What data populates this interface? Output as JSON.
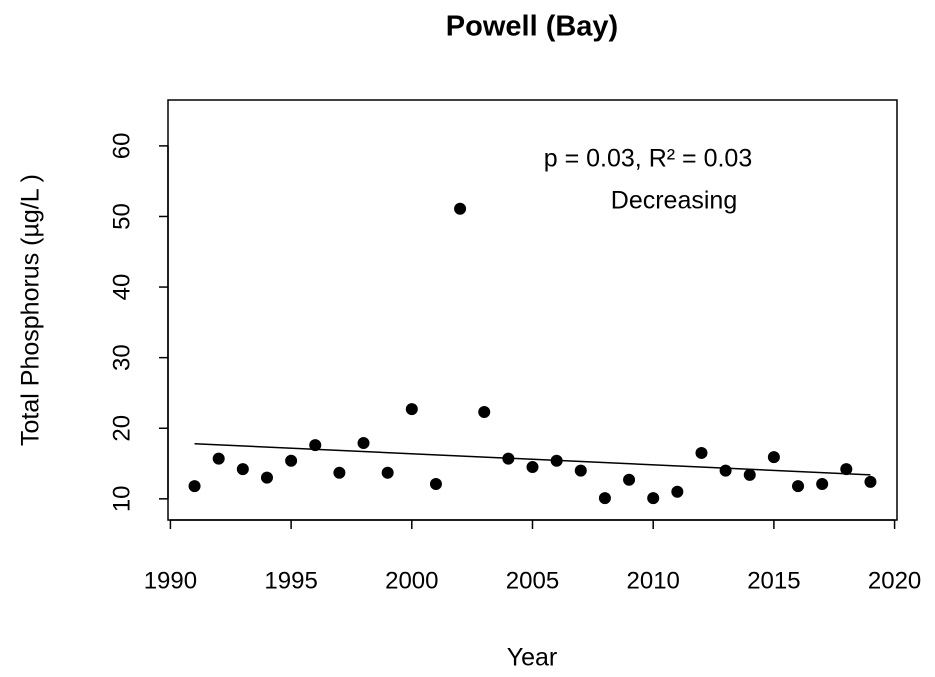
{
  "chart_data": {
    "type": "scatter",
    "title": "Powell (Bay)",
    "x_label": "Year",
    "y_label": "Total Phosphorus (µg/L )",
    "annotations": [
      "p = 0.03, R² = 0.03",
      "Decreasing"
    ],
    "x": [
      1991,
      1992,
      1993,
      1994,
      1995,
      1996,
      1997,
      1998,
      1999,
      2000,
      2001,
      2002,
      2003,
      2004,
      2005,
      2006,
      2007,
      2008,
      2009,
      2010,
      2011,
      2012,
      2013,
      2014,
      2015,
      2016,
      2017,
      2018,
      2019
    ],
    "values": [
      11.8,
      15.7,
      14.2,
      13.0,
      15.4,
      17.6,
      13.7,
      17.9,
      13.7,
      22.7,
      12.1,
      51.1,
      22.3,
      15.7,
      14.5,
      15.4,
      14.0,
      10.1,
      12.7,
      10.1,
      11.0,
      16.5,
      14.0,
      13.4,
      15.9,
      11.8,
      12.1,
      14.2,
      12.4
    ],
    "color": "#000000",
    "trend": {
      "x": [
        1991,
        2019
      ],
      "y": [
        17.8,
        13.4
      ]
    },
    "xlim": [
      1989.9,
      2020.1
    ],
    "xticks": [
      1990,
      1995,
      2000,
      2005,
      2010,
      2015,
      2020
    ],
    "ylim": [
      7.0,
      66.5
    ],
    "yticks": [
      10,
      20,
      30,
      40,
      50,
      60
    ],
    "grid": false
  }
}
